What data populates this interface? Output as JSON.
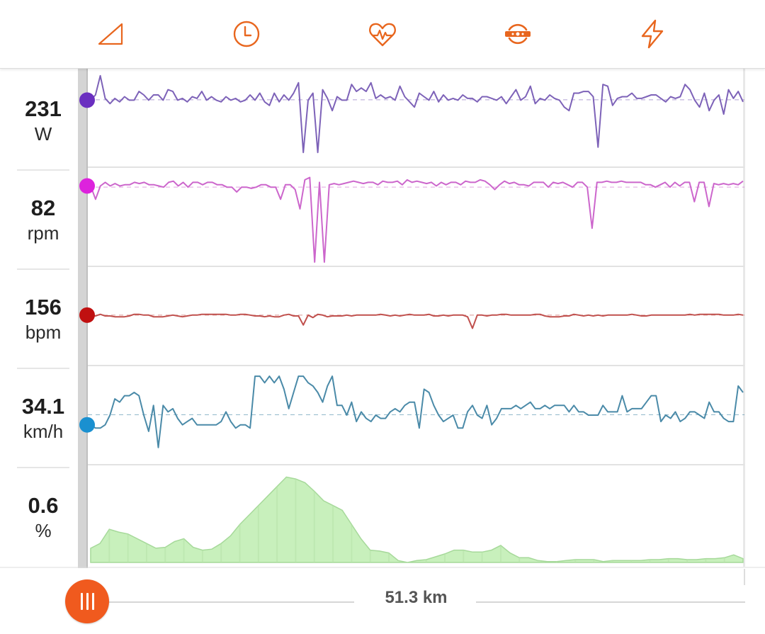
{
  "toolbar": {
    "tabs": [
      {
        "id": "tab-elevation",
        "icon": "triangle-grade-icon"
      },
      {
        "id": "tab-time",
        "icon": "clock-icon"
      },
      {
        "id": "tab-heart",
        "icon": "heart-pulse-icon"
      },
      {
        "id": "tab-cadence",
        "icon": "cadence-sensor-icon"
      },
      {
        "id": "tab-power",
        "icon": "lightning-bolt-icon"
      }
    ],
    "accent_color": "#e8661e"
  },
  "metrics": [
    {
      "value": "231",
      "unit": "W",
      "color": "#7d62b8",
      "dot": "#6a2fc0"
    },
    {
      "value": "82",
      "unit": "rpm",
      "color": "#cc66cc",
      "dot": "#dd22dd"
    },
    {
      "value": "156",
      "unit": "bpm",
      "color": "#c0504d",
      "dot": "#c01010"
    },
    {
      "value": "34.1",
      "unit": "km/h",
      "color": "#4a8aa8",
      "dot": "#1a90d0"
    },
    {
      "value": "0.6",
      "unit": "%",
      "color": "#a6e59a",
      "dot": null
    }
  ],
  "chart_data": [
    {
      "type": "line",
      "name": "power",
      "unit": "W",
      "average": 231,
      "y_range": [
        50,
        310
      ],
      "values": [
        230,
        245,
        300,
        235,
        220,
        235,
        225,
        240,
        230,
        230,
        255,
        245,
        230,
        245,
        245,
        230,
        260,
        255,
        230,
        235,
        225,
        240,
        235,
        255,
        230,
        240,
        230,
        225,
        240,
        230,
        235,
        225,
        230,
        245,
        230,
        250,
        225,
        215,
        250,
        225,
        245,
        230,
        250,
        280,
        80,
        230,
        250,
        80,
        260,
        235,
        200,
        240,
        230,
        230,
        275,
        255,
        265,
        255,
        280,
        235,
        245,
        235,
        240,
        230,
        270,
        240,
        225,
        210,
        250,
        240,
        230,
        255,
        225,
        245,
        230,
        235,
        230,
        245,
        235,
        235,
        225,
        240,
        240,
        235,
        230,
        240,
        220,
        240,
        260,
        230,
        240,
        270,
        220,
        235,
        230,
        245,
        235,
        230,
        210,
        200,
        250,
        250,
        255,
        255,
        240,
        95,
        275,
        270,
        215,
        235,
        240,
        240,
        250,
        235,
        235,
        240,
        245,
        245,
        235,
        225,
        240,
        235,
        240,
        275,
        260,
        230,
        210,
        250,
        200,
        230,
        245,
        190,
        260,
        235,
        255,
        225
      ]
    },
    {
      "type": "line",
      "name": "cadence",
      "unit": "rpm",
      "average": 82,
      "y_range": [
        20,
        95
      ],
      "values": [
        83,
        72,
        83,
        86,
        83,
        85,
        83,
        84,
        84,
        86,
        85,
        86,
        84,
        84,
        83,
        82,
        86,
        87,
        83,
        86,
        82,
        86,
        86,
        84,
        86,
        86,
        84,
        84,
        82,
        82,
        78,
        82,
        82,
        81,
        82,
        84,
        84,
        82,
        82,
        72,
        84,
        84,
        80,
        64,
        88,
        90,
        20,
        86,
        20,
        84,
        85,
        84,
        85,
        86,
        87,
        86,
        85,
        86,
        86,
        84,
        87,
        86,
        86,
        87,
        84,
        88,
        86,
        87,
        86,
        85,
        86,
        83,
        86,
        84,
        86,
        86,
        84,
        87,
        86,
        86,
        88,
        87,
        84,
        80,
        84,
        87,
        85,
        86,
        84,
        84,
        83,
        86,
        86,
        86,
        82,
        86,
        85,
        86,
        84,
        82,
        86,
        86,
        82,
        48,
        86,
        86,
        87,
        86,
        86,
        87,
        86,
        86,
        86,
        86,
        84,
        84,
        82,
        84,
        86,
        82,
        86,
        83,
        86,
        86,
        70,
        86,
        86,
        66,
        85,
        84,
        85,
        84,
        85,
        84,
        87
      ]
    },
    {
      "type": "line",
      "name": "heart rate",
      "unit": "bpm",
      "average": 156,
      "y_range": [
        100,
        210
      ],
      "values": [
        156,
        155,
        157,
        155,
        155,
        154,
        154,
        154,
        155,
        157,
        157,
        156,
        156,
        154,
        154,
        154,
        155,
        156,
        155,
        154,
        155,
        156,
        156,
        157,
        157,
        157,
        157,
        157,
        157,
        156,
        156,
        157,
        157,
        156,
        155,
        155,
        154,
        155,
        154,
        154,
        156,
        157,
        155,
        155,
        144,
        156,
        153,
        157,
        156,
        154,
        155,
        155,
        155,
        156,
        155,
        156,
        156,
        156,
        156,
        156,
        157,
        156,
        155,
        156,
        155,
        156,
        157,
        156,
        156,
        156,
        157,
        155,
        155,
        156,
        155,
        156,
        156,
        156,
        154,
        140,
        156,
        156,
        155,
        156,
        156,
        157,
        157,
        156,
        156,
        156,
        156,
        156,
        157,
        157,
        155,
        154,
        154,
        154,
        155,
        155,
        157,
        156,
        155,
        156,
        155,
        156,
        155,
        156,
        156,
        156,
        156,
        156,
        157,
        156,
        155,
        155,
        156,
        156,
        156,
        156,
        156,
        156,
        156,
        156,
        157,
        156,
        157,
        157,
        157,
        157,
        157,
        156,
        156,
        156,
        157,
        156
      ]
    },
    {
      "type": "line",
      "name": "speed",
      "unit": "km/h",
      "average": 34.1,
      "y_range": [
        20,
        48
      ],
      "values": [
        31,
        30,
        30,
        31,
        34,
        39,
        38,
        40,
        40,
        41,
        40,
        34,
        29,
        37,
        24,
        37,
        35,
        36,
        33,
        31,
        32,
        33,
        31,
        31,
        31,
        31,
        31,
        32,
        35,
        32,
        30,
        31,
        31,
        30,
        46,
        46,
        44,
        46,
        44,
        46,
        42,
        36,
        41,
        46,
        46,
        44,
        43,
        41,
        38,
        43,
        46,
        37,
        37,
        34,
        38,
        32,
        35,
        33,
        32,
        34,
        33,
        33,
        35,
        36,
        35,
        37,
        38,
        38,
        30,
        42,
        41,
        37,
        34,
        32,
        33,
        34,
        30,
        30,
        35,
        37,
        34,
        33,
        37,
        31,
        33,
        36,
        36,
        36,
        37,
        36,
        37,
        38,
        36,
        36,
        37,
        36,
        37,
        37,
        37,
        35,
        37,
        35,
        35,
        34,
        34,
        34,
        37,
        35,
        35,
        35,
        40,
        35,
        36,
        36,
        36,
        38,
        40,
        40,
        32,
        34,
        33,
        35,
        32,
        33,
        35,
        35,
        34,
        33,
        38,
        35,
        35,
        33,
        32,
        32,
        43,
        41
      ]
    },
    {
      "type": "area",
      "name": "grade",
      "unit": "%",
      "values": [
        1.5,
        2.0,
        3.5,
        3.2,
        3.0,
        2.5,
        2.0,
        1.5,
        1.6,
        2.2,
        2.5,
        1.6,
        1.3,
        1.4,
        2.0,
        2.8,
        4.0,
        5.0,
        6.0,
        7.0,
        8.0,
        9.0,
        8.8,
        8.4,
        7.5,
        6.5,
        6.0,
        5.5,
        4.0,
        2.5,
        1.3,
        1.2,
        1.0,
        0.2,
        0.0,
        0.2,
        0.3,
        0.6,
        0.9,
        1.3,
        1.3,
        1.1,
        1.1,
        1.3,
        1.8,
        1.0,
        0.5,
        0.5,
        0.2,
        0.1,
        0.1,
        0.2,
        0.3,
        0.3,
        0.3,
        0.1,
        0.2,
        0.2,
        0.2,
        0.2,
        0.3,
        0.3,
        0.4,
        0.4,
        0.3,
        0.3,
        0.4,
        0.4,
        0.5,
        0.8,
        0.4
      ]
    }
  ],
  "footer": {
    "distance_label": "51.3 km"
  }
}
